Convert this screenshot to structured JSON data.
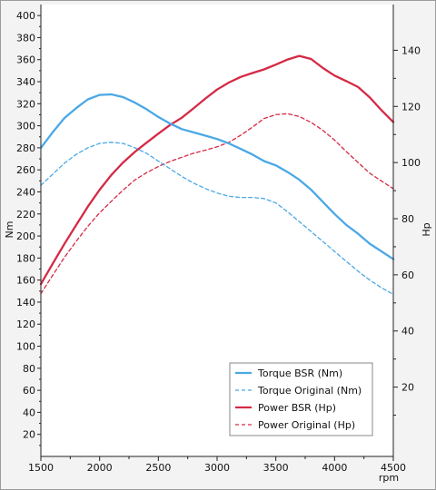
{
  "chart_data": {
    "type": "line",
    "title": "",
    "xlabel": "rpm",
    "ylabel_left": "Nm",
    "ylabel_right": "Hp",
    "xlim": [
      1500,
      4500
    ],
    "ylim_left": [
      0,
      410
    ],
    "ylim_right": [
      -4.7,
      156.3
    ],
    "xticks": [
      1500,
      2000,
      2500,
      3000,
      3500,
      4000,
      4500
    ],
    "yticks_left": [
      20,
      40,
      60,
      80,
      100,
      120,
      140,
      160,
      180,
      200,
      220,
      240,
      260,
      280,
      300,
      320,
      340,
      360,
      380,
      400
    ],
    "yticks_right": [
      20,
      40,
      60,
      80,
      100,
      120,
      140
    ],
    "grid": false,
    "legend_position": "bottom-right",
    "colors": {
      "torque": "#4aa8e6",
      "power": "#d42a45",
      "plot_bg": "#ffffff",
      "frame_bg": "#f3f3f3"
    },
    "series": [
      {
        "name": "Torque BSR (Nm)",
        "axis": "left",
        "style": "solid",
        "color": "#4aa8e6",
        "x": [
          1500,
          1600,
          1700,
          1800,
          1900,
          2000,
          2100,
          2200,
          2300,
          2400,
          2500,
          2600,
          2700,
          2800,
          2900,
          3000,
          3100,
          3200,
          3300,
          3400,
          3500,
          3600,
          3700,
          3800,
          3900,
          4000,
          4100,
          4200,
          4300,
          4400,
          4500
        ],
        "y": [
          280,
          294,
          307,
          316,
          324,
          328,
          328.5,
          326,
          321,
          315,
          308,
          302,
          297,
          294,
          291,
          288,
          284,
          279,
          274,
          268,
          264,
          258,
          251,
          242,
          231,
          220,
          210,
          202,
          193,
          186,
          179
        ]
      },
      {
        "name": "Torque Original (Nm)",
        "axis": "left",
        "style": "dashed",
        "color": "#4aa8e6",
        "x": [
          1500,
          1600,
          1700,
          1800,
          1900,
          2000,
          2100,
          2200,
          2300,
          2400,
          2500,
          2600,
          2700,
          2800,
          2900,
          3000,
          3100,
          3200,
          3300,
          3400,
          3500,
          3600,
          3700,
          3800,
          3900,
          4000,
          4100,
          4200,
          4300,
          4400,
          4500
        ],
        "y": [
          246,
          256,
          266,
          274,
          280,
          284,
          285,
          284,
          280,
          275,
          268,
          261,
          254,
          248,
          243,
          239,
          236,
          235,
          235,
          234,
          230,
          222,
          213,
          204,
          195,
          186,
          177,
          168,
          160,
          153,
          147
        ]
      },
      {
        "name": "Power BSR (Hp)",
        "axis": "right",
        "style": "solid",
        "color": "#d42a45",
        "x": [
          1500,
          1600,
          1700,
          1800,
          1900,
          2000,
          2100,
          2200,
          2300,
          2400,
          2500,
          2600,
          2700,
          2800,
          2900,
          3000,
          3100,
          3200,
          3300,
          3400,
          3500,
          3600,
          3700,
          3800,
          3900,
          4000,
          4100,
          4200,
          4300,
          4400,
          4500
        ],
        "y": [
          56.7,
          63.9,
          71.0,
          77.7,
          84.3,
          90.3,
          95.6,
          100.0,
          103.8,
          107.1,
          110.3,
          113.4,
          116.0,
          119.3,
          122.8,
          126.0,
          128.5,
          130.5,
          131.9,
          133.2,
          134.9,
          136.7,
          138.0,
          136.9,
          133.7,
          131.0,
          129.0,
          126.9,
          123.2,
          118.6,
          114.4
        ]
      },
      {
        "name": "Power Original (Hp)",
        "axis": "right",
        "style": "dashed",
        "color": "#d42a45",
        "x": [
          1500,
          1600,
          1700,
          1800,
          1900,
          2000,
          2100,
          2200,
          2300,
          2400,
          2500,
          2600,
          2700,
          2800,
          2900,
          3000,
          3100,
          3200,
          3300,
          3400,
          3500,
          3600,
          3700,
          3800,
          3900,
          4000,
          4100,
          4200,
          4300,
          4400,
          4500
        ],
        "y": [
          53.3,
          59.8,
          66.2,
          71.9,
          77.3,
          82.1,
          86.2,
          90.2,
          93.8,
          96.4,
          98.6,
          100.4,
          101.9,
          103.3,
          104.4,
          105.6,
          107.2,
          109.7,
          112.6,
          115.7,
          117.1,
          117.4,
          116.4,
          114.3,
          111.5,
          108.0,
          103.9,
          100.0,
          96.2,
          93.4,
          90.7
        ]
      }
    ]
  }
}
